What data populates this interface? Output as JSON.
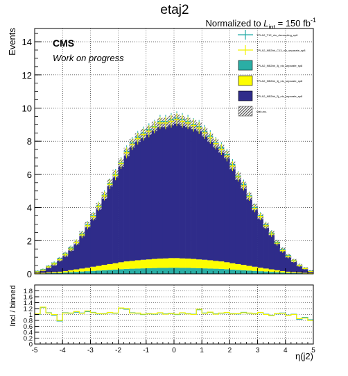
{
  "title": "etaj2",
  "lumi": {
    "prefix": "Normalized to ",
    "L": "L",
    "sub": "int",
    "value": " = 150 fb",
    "sup": "-1"
  },
  "cms": {
    "label": "CMS",
    "sublabel": "Work on progress"
  },
  "legend": [
    {
      "label": "TPI-A2_T12_nlo_decoupling_sp8",
      "style": "errbar",
      "color": "#1fa9a3"
    },
    {
      "label": "TPI-A2_NB2bb_C13_nlo_separate_sp8",
      "style": "errbar",
      "color": "#f2f200"
    },
    {
      "label": "TPI-A2_NB2bb_3j_nlo_separate_sp8",
      "style": "fill",
      "color": "#2aaea5"
    },
    {
      "label": "TPI-A2_NB2bb_1j_nlo_separate_sp8",
      "style": "fill",
      "color": "#fdfd00"
    },
    {
      "label": "TPI-A2_NB2bb_2j_nlo_separate_sp8",
      "style": "fill",
      "color": "#2f2c8a"
    },
    {
      "label": "stat.unc.",
      "style": "hatch",
      "color": "#555555"
    }
  ],
  "colors": {
    "teal": "#2aaea5",
    "yellow": "#fdfd00",
    "navy": "#2f2c8a",
    "unc": "#555555"
  },
  "chart_data": [
    {
      "type": "bar",
      "stacked": true,
      "xlabel": "η(j2)",
      "ylabel": "Events",
      "xlim": [
        -5,
        5
      ],
      "ylim": [
        0,
        14.8
      ],
      "xticks": [
        "-5",
        "-4",
        "-3",
        "-2",
        "-1",
        "0",
        "1",
        "2",
        "3",
        "4",
        "5"
      ],
      "yticks": [
        "0",
        "2",
        "4",
        "6",
        "8",
        "10",
        "12",
        "14"
      ],
      "grid": true,
      "legend_position": "top-right",
      "bin_edges_start": -5,
      "bin_width": 0.2,
      "series": [
        {
          "name": "TPI-A2_NB2bb_3j_nlo_separate_sp8",
          "style": "fill",
          "values": [
            0.02,
            0.03,
            0.04,
            0.05,
            0.06,
            0.08,
            0.1,
            0.12,
            0.14,
            0.16,
            0.18,
            0.2,
            0.22,
            0.24,
            0.26,
            0.28,
            0.3,
            0.31,
            0.32,
            0.33,
            0.34,
            0.35,
            0.36,
            0.36,
            0.37,
            0.37,
            0.36,
            0.36,
            0.35,
            0.34,
            0.33,
            0.32,
            0.31,
            0.3,
            0.28,
            0.26,
            0.24,
            0.22,
            0.2,
            0.18,
            0.16,
            0.14,
            0.12,
            0.1,
            0.08,
            0.06,
            0.05,
            0.04,
            0.03,
            0.02
          ]
        },
        {
          "name": "TPI-A2_NB2bb_1j_nlo_separate_sp8",
          "style": "fill",
          "values": [
            0.02,
            0.03,
            0.04,
            0.05,
            0.07,
            0.09,
            0.12,
            0.15,
            0.18,
            0.21,
            0.25,
            0.28,
            0.32,
            0.35,
            0.38,
            0.42,
            0.45,
            0.47,
            0.5,
            0.52,
            0.53,
            0.55,
            0.56,
            0.57,
            0.58,
            0.58,
            0.57,
            0.56,
            0.55,
            0.53,
            0.52,
            0.5,
            0.47,
            0.45,
            0.42,
            0.38,
            0.35,
            0.32,
            0.28,
            0.25,
            0.21,
            0.18,
            0.15,
            0.12,
            0.09,
            0.07,
            0.05,
            0.04,
            0.03,
            0.02
          ]
        },
        {
          "name": "TPI-A2_NB2bb_2j_nlo_separate_sp8",
          "style": "fill",
          "values": [
            0.1,
            0.18,
            0.35,
            0.5,
            0.75,
            1.0,
            1.3,
            1.65,
            2.1,
            2.6,
            3.05,
            3.6,
            4.2,
            4.9,
            5.4,
            6.0,
            6.6,
            7.1,
            7.4,
            7.6,
            7.8,
            8.0,
            8.2,
            8.2,
            8.3,
            8.4,
            8.3,
            8.2,
            8.1,
            8.0,
            7.7,
            7.4,
            7.1,
            6.8,
            6.5,
            5.9,
            5.3,
            4.8,
            4.2,
            3.6,
            3.1,
            2.6,
            2.2,
            1.7,
            1.3,
            0.95,
            0.7,
            0.45,
            0.28,
            0.12
          ]
        },
        {
          "name": "stat.unc.",
          "style": "hatch",
          "values": [
            0.06,
            0.06,
            0.08,
            0.09,
            0.1,
            0.12,
            0.13,
            0.14,
            0.16,
            0.17,
            0.19,
            0.2,
            0.21,
            0.22,
            0.23,
            0.24,
            0.25,
            0.26,
            0.26,
            0.27,
            0.27,
            0.28,
            0.28,
            0.29,
            0.29,
            0.29,
            0.29,
            0.28,
            0.28,
            0.27,
            0.27,
            0.26,
            0.26,
            0.25,
            0.24,
            0.23,
            0.22,
            0.21,
            0.2,
            0.19,
            0.17,
            0.16,
            0.14,
            0.13,
            0.12,
            0.1,
            0.09,
            0.08,
            0.06,
            0.06
          ]
        }
      ],
      "overlays": [
        {
          "name": "TPI-A2_T12_nlo_decoupling_sp8",
          "style": "errbar",
          "values": [
            0.15,
            0.25,
            0.45,
            0.65,
            0.9,
            1.2,
            1.55,
            1.9,
            2.4,
            2.95,
            3.5,
            4.1,
            4.75,
            5.45,
            6.0,
            6.7,
            7.4,
            7.9,
            8.25,
            8.5,
            8.7,
            8.9,
            9.2,
            9.2,
            9.3,
            9.4,
            9.3,
            9.2,
            9.0,
            8.9,
            8.6,
            8.3,
            7.9,
            7.6,
            7.2,
            6.6,
            5.9,
            5.4,
            4.7,
            4.0,
            3.5,
            2.95,
            2.45,
            1.9,
            1.45,
            1.1,
            0.8,
            0.52,
            0.33,
            0.16
          ],
          "errors": [
            0.05,
            0.07,
            0.09,
            0.1,
            0.12,
            0.14,
            0.16,
            0.18,
            0.2,
            0.22,
            0.24,
            0.26,
            0.28,
            0.3,
            0.32,
            0.34,
            0.35,
            0.36,
            0.37,
            0.38,
            0.38,
            0.39,
            0.4,
            0.4,
            0.4,
            0.4,
            0.4,
            0.4,
            0.39,
            0.38,
            0.38,
            0.37,
            0.36,
            0.35,
            0.34,
            0.32,
            0.3,
            0.28,
            0.26,
            0.24,
            0.22,
            0.2,
            0.18,
            0.16,
            0.14,
            0.12,
            0.1,
            0.09,
            0.07,
            0.05
          ]
        },
        {
          "name": "TPI-A2_NB2bb_C13_nlo_separate_sp8",
          "style": "errbar",
          "values": [
            0.12,
            0.22,
            0.42,
            0.6,
            0.85,
            1.15,
            1.5,
            1.9,
            2.35,
            2.9,
            3.45,
            4.05,
            4.7,
            5.4,
            5.95,
            6.65,
            7.3,
            7.8,
            8.15,
            8.4,
            8.6,
            8.85,
            9.1,
            9.1,
            9.2,
            9.3,
            9.2,
            9.1,
            8.95,
            8.8,
            8.5,
            8.2,
            7.85,
            7.5,
            7.1,
            6.5,
            5.85,
            5.3,
            4.65,
            3.95,
            3.45,
            2.9,
            2.4,
            1.85,
            1.4,
            1.05,
            0.78,
            0.5,
            0.32,
            0.14
          ],
          "errors": [
            0.05,
            0.06,
            0.08,
            0.1,
            0.12,
            0.13,
            0.15,
            0.17,
            0.19,
            0.21,
            0.23,
            0.25,
            0.27,
            0.29,
            0.3,
            0.32,
            0.33,
            0.34,
            0.35,
            0.36,
            0.36,
            0.37,
            0.37,
            0.38,
            0.38,
            0.38,
            0.38,
            0.37,
            0.37,
            0.36,
            0.36,
            0.35,
            0.34,
            0.33,
            0.32,
            0.3,
            0.29,
            0.27,
            0.25,
            0.23,
            0.21,
            0.19,
            0.17,
            0.15,
            0.13,
            0.12,
            0.1,
            0.08,
            0.06,
            0.05
          ]
        }
      ]
    },
    {
      "type": "line",
      "xlabel": "η(j2)",
      "ylabel": "Incl / binned",
      "xlim": [
        -5,
        5
      ],
      "ylim": [
        0,
        2
      ],
      "xticks": [
        "-5",
        "-4",
        "-3",
        "-2",
        "-1",
        "0",
        "1",
        "2",
        "3",
        "4",
        "5"
      ],
      "yticks": [
        "0",
        "0.2",
        "0.4",
        "0.6",
        "0.8",
        "1",
        "1.2",
        "1.4",
        "1.6",
        "1.8"
      ],
      "grid": true,
      "series": [
        {
          "name": "TPI-A2_T12_nlo_decoupling_sp8",
          "color": "#1fa9a3",
          "values": [
            1.0,
            1.24,
            1.06,
            0.98,
            0.78,
            1.06,
            1.04,
            1.08,
            1.05,
            1.1,
            1.07,
            1.02,
            1.03,
            1.06,
            1.04,
            1.21,
            1.18,
            1.06,
            1.04,
            1.0,
            1.03,
            1.01,
            1.05,
            1.02,
            1.04,
            1.0,
            1.05,
            1.03,
            1.01,
            1.16,
            1.05,
            1.07,
            1.02,
            1.04,
            1.06,
            1.03,
            1.02,
            1.07,
            1.04,
            1.03,
            1.06,
            1.01,
            0.97,
            1.02,
            1.05,
            0.98,
            1.01,
            0.84,
            0.9,
            0.82
          ]
        },
        {
          "name": "TPI-A2_NB2bb_C13_nlo_separate_sp8",
          "color": "#f2f200",
          "values": [
            1.02,
            1.25,
            1.05,
            1.0,
            0.8,
            1.05,
            1.05,
            1.1,
            1.04,
            1.12,
            1.06,
            1.03,
            1.02,
            1.07,
            1.05,
            1.22,
            1.2,
            1.05,
            1.05,
            1.01,
            1.02,
            1.02,
            1.06,
            1.01,
            1.03,
            1.01,
            1.06,
            1.02,
            1.0,
            1.18,
            1.04,
            1.08,
            1.01,
            1.05,
            1.07,
            1.02,
            1.03,
            1.06,
            1.05,
            1.02,
            1.07,
            1.0,
            0.96,
            1.03,
            1.04,
            0.97,
            1.0,
            0.86,
            0.88,
            0.8
          ]
        }
      ]
    }
  ]
}
